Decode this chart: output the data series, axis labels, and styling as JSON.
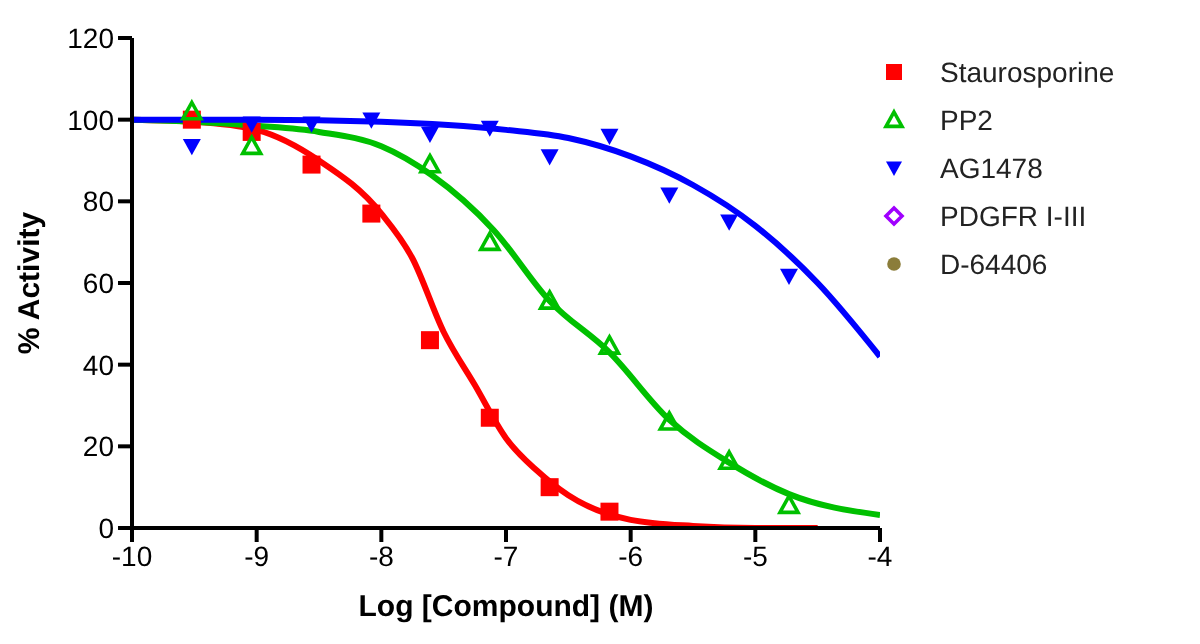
{
  "chart_data": {
    "type": "scatter",
    "xlabel": "Log [Compound] (M)",
    "ylabel": "% Activity",
    "xlim": [
      -10,
      -4
    ],
    "xticks": [
      -10,
      -9,
      -8,
      -7,
      -6,
      -5,
      -4
    ],
    "ylim": [
      0,
      120
    ],
    "yticks": [
      0,
      20,
      40,
      60,
      80,
      100,
      120
    ],
    "grid": false,
    "legend": "right",
    "series": [
      {
        "type": "line",
        "color": "#ff0000",
        "marker": "none",
        "x": [
          -10,
          -9.5,
          -9,
          -8.5,
          -8,
          -7.75,
          -7.5,
          -7.25,
          -7,
          -6.75,
          -6.5,
          -6,
          -5.5,
          -5,
          -4.5
        ],
        "values": [
          100,
          99.5,
          97.5,
          90,
          77,
          66,
          48,
          35,
          22,
          14,
          8,
          2,
          0.5,
          0,
          0
        ]
      },
      {
        "type": "line",
        "color": "#00c000",
        "marker": "none",
        "x": [
          -10,
          -9.5,
          -9,
          -8.5,
          -8,
          -7.6,
          -7.1,
          -6.65,
          -6.17,
          -5.69,
          -5.21,
          -4.73,
          -4
        ],
        "values": [
          100,
          99.5,
          98.5,
          97,
          93.5,
          86.5,
          73,
          55.6,
          43,
          26.5,
          16,
          8.3,
          3.2
        ]
      },
      {
        "type": "line",
        "color": "#0000ff",
        "marker": "none",
        "x": [
          -10,
          -9,
          -8,
          -7,
          -6.5,
          -6,
          -5.5,
          -5,
          -4.5,
          -4
        ],
        "values": [
          100,
          100,
          99.5,
          97.5,
          95.5,
          91,
          84,
          74,
          60,
          42
        ]
      },
      {
        "name": "Staurosporine",
        "color": "#ff0000",
        "marker": "square",
        "x": [
          -9.52,
          -9.04,
          -8.56,
          -8.08,
          -7.61,
          -7.13,
          -6.65,
          -6.17
        ],
        "values": [
          100,
          97,
          89,
          77,
          46,
          27,
          10,
          4
        ]
      },
      {
        "name": "PP2",
        "color": "#00c000",
        "marker": "triangle",
        "x": [
          -9.52,
          -9.04,
          -7.61,
          -7.13,
          -6.65,
          -6.17,
          -5.69,
          -5.21,
          -4.73
        ],
        "values": [
          102,
          93.5,
          89,
          70,
          55.6,
          44.6,
          26,
          16.4,
          5.6
        ]
      },
      {
        "name": "AG1478",
        "color": "#0000ff",
        "marker": "triangle-down",
        "x": [
          -9.52,
          -9.04,
          -8.56,
          -8.08,
          -7.61,
          -7.13,
          -6.65,
          -6.17,
          -5.69,
          -5.21,
          -4.73
        ],
        "values": [
          93.5,
          99,
          99,
          100,
          96.5,
          98,
          91,
          96,
          81.6,
          75,
          61.7
        ]
      },
      {
        "name": "PDGFR I-III",
        "color": "#a000ff",
        "marker": "diamond"
      },
      {
        "name": "D-64406",
        "color": "#8b7d3a",
        "marker": "circle"
      }
    ]
  }
}
